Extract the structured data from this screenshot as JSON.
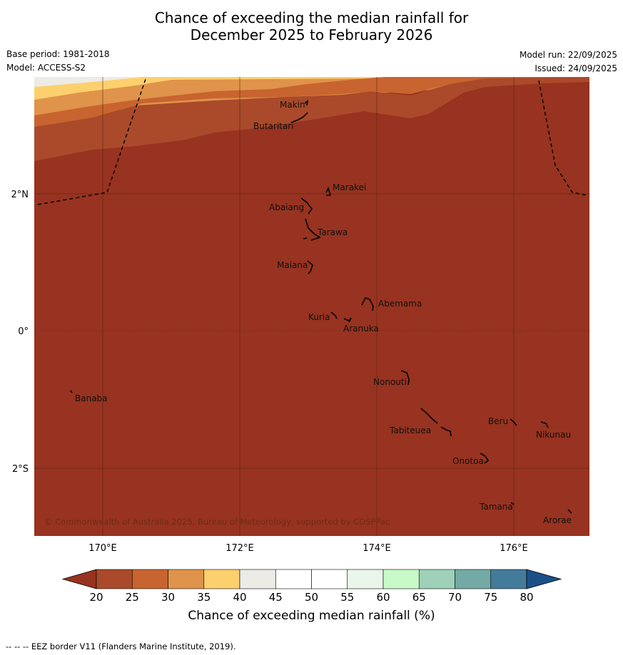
{
  "title": {
    "line1": "Chance of exceeding the median rainfall for",
    "line2": "December 2025 to February 2026"
  },
  "meta": {
    "base_period": "Base period: 1981-2018",
    "model": "Model: ACCESS-S2",
    "model_run": "Model run: 22/09/2025",
    "issued": "Issued: 24/09/2025"
  },
  "map": {
    "lat_labels": [
      "2°N",
      "0°",
      "2°S"
    ],
    "lon_labels": [
      "170°E",
      "172°E",
      "174°E",
      "176°E"
    ],
    "copyright": "© Commonwealth of Australia 2025, Bureau of Meteorology, supported by COSPPac",
    "places": [
      {
        "id": "makin",
        "name": "Makin"
      },
      {
        "id": "butaritari",
        "name": "Butaritari"
      },
      {
        "id": "marakei",
        "name": "Marakei"
      },
      {
        "id": "abaiang",
        "name": "Abaiang"
      },
      {
        "id": "tarawa",
        "name": "Tarawa"
      },
      {
        "id": "maiana",
        "name": "Maiana"
      },
      {
        "id": "abemama",
        "name": "Abemama"
      },
      {
        "id": "kuria",
        "name": "Kuria"
      },
      {
        "id": "aranuka",
        "name": "Aranuka"
      },
      {
        "id": "nonouti",
        "name": "Nonouti"
      },
      {
        "id": "banaba",
        "name": "Banaba"
      },
      {
        "id": "beru",
        "name": "Beru"
      },
      {
        "id": "nikunau",
        "name": "Nikunau"
      },
      {
        "id": "tabiteuea",
        "name": "Tabiteuea"
      },
      {
        "id": "onotoa",
        "name": "Onotoa"
      },
      {
        "id": "tamana",
        "name": "Tamana"
      },
      {
        "id": "arorae",
        "name": "Arorae"
      }
    ]
  },
  "colorbar": {
    "title": "Chance of exceeding median rainfall (%)",
    "ticks": [
      "20",
      "25",
      "30",
      "35",
      "40",
      "45",
      "50",
      "55",
      "60",
      "65",
      "70",
      "75",
      "80"
    ],
    "colors": [
      "#aa4a2a",
      "#c8642f",
      "#e0934a",
      "#fdd06e",
      "#ecebe6",
      "#ffffff",
      "#ffffff",
      "#eaf6ea",
      "#c8fac8",
      "#9fd1b9",
      "#73aaa6",
      "#437c9b"
    ],
    "under_color": "#973320",
    "over_color": "#1d5089"
  },
  "footnote": "--  --  -- EEZ border V11 (Flanders Marine Institute, 2019)."
}
